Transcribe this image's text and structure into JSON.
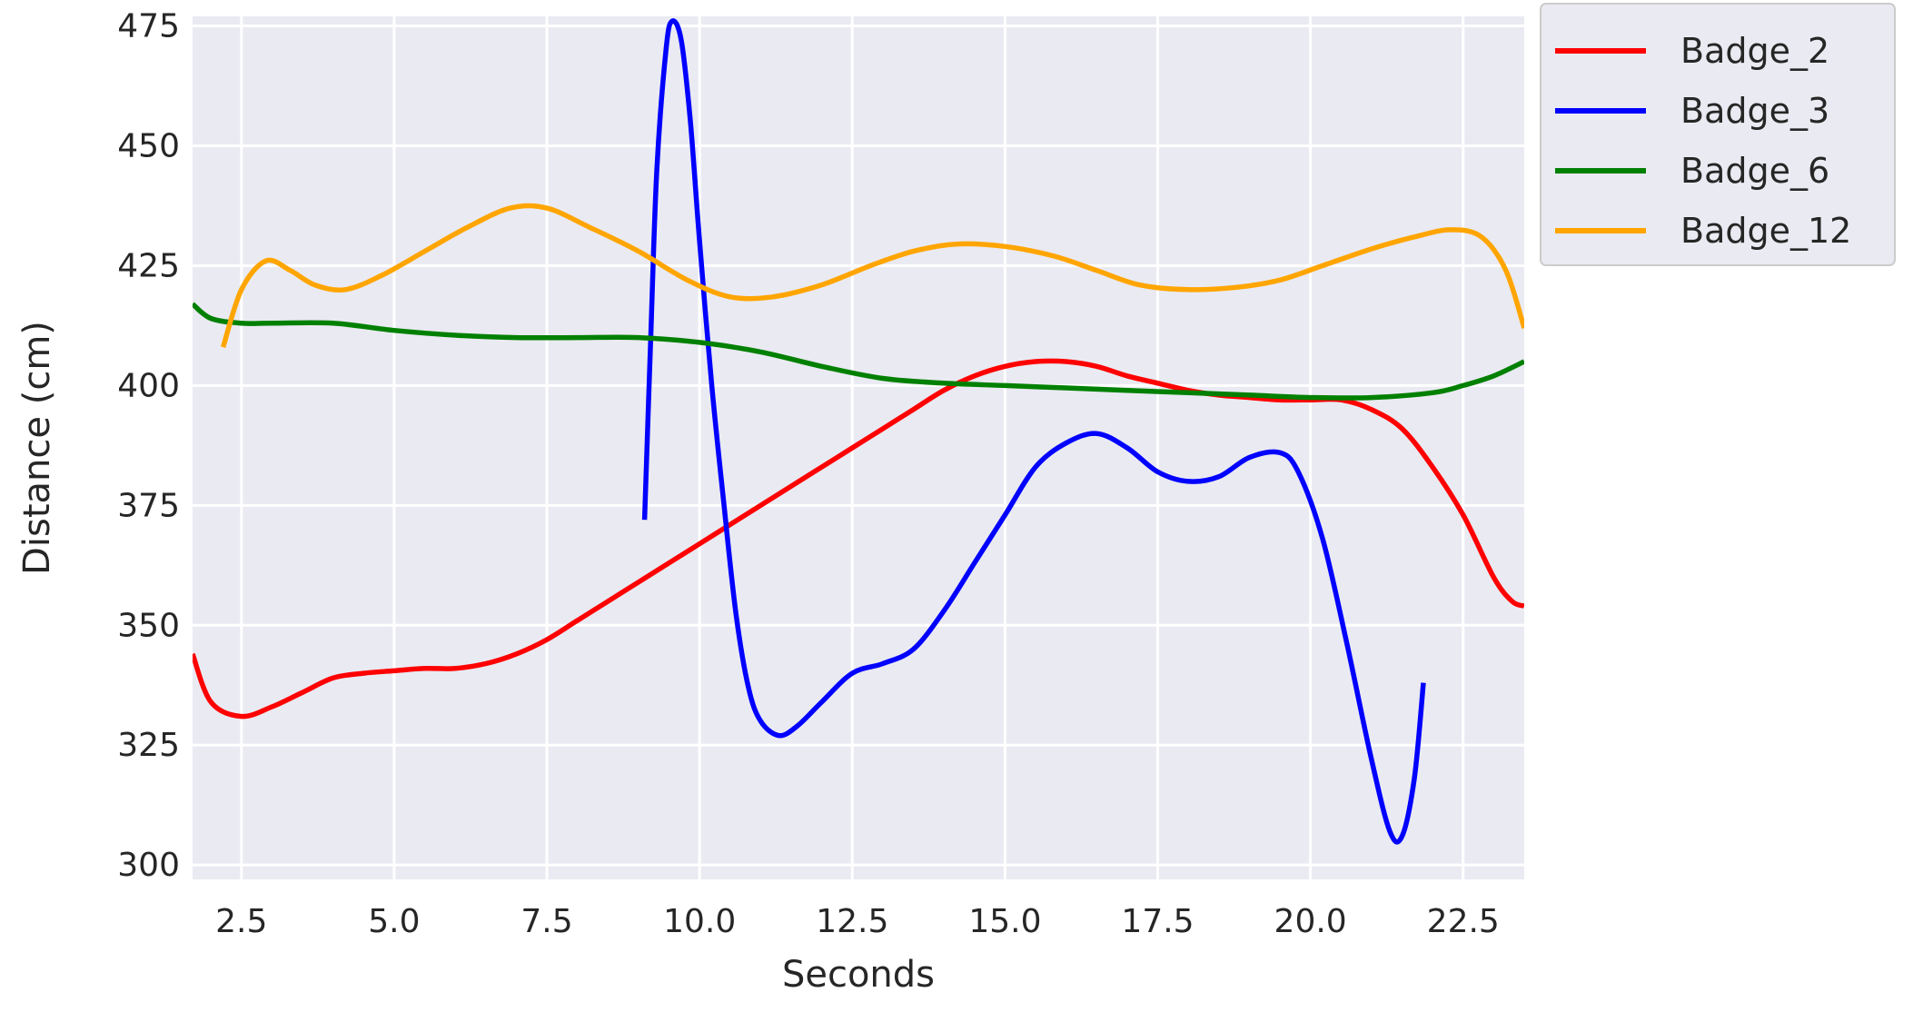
{
  "chart_data": {
    "type": "line",
    "xlabel": "Seconds",
    "ylabel": "Distance (cm)",
    "xlim": [
      1.7,
      23.5
    ],
    "ylim": [
      297,
      477
    ],
    "xticks": [
      2.5,
      5.0,
      7.5,
      10.0,
      12.5,
      15.0,
      17.5,
      20.0,
      22.5
    ],
    "xtick_labels": [
      "2.5",
      "5.0",
      "7.5",
      "10.0",
      "12.5",
      "15.0",
      "17.5",
      "20.0",
      "22.5"
    ],
    "yticks": [
      300,
      325,
      350,
      375,
      400,
      425,
      450,
      475
    ],
    "ytick_labels": [
      "300",
      "325",
      "350",
      "375",
      "400",
      "425",
      "450",
      "475"
    ],
    "grid": true,
    "legend_position": "outside-upper-right",
    "series": [
      {
        "name": "Badge_2",
        "color": "#ff0000",
        "points": [
          [
            1.7,
            344
          ],
          [
            2.0,
            334
          ],
          [
            2.5,
            331
          ],
          [
            3.0,
            333
          ],
          [
            3.5,
            336
          ],
          [
            4.0,
            339
          ],
          [
            4.5,
            340
          ],
          [
            5.0,
            340.5
          ],
          [
            5.5,
            341
          ],
          [
            6.0,
            341
          ],
          [
            6.5,
            342
          ],
          [
            7.0,
            344
          ],
          [
            7.5,
            347
          ],
          [
            8.0,
            351
          ],
          [
            8.5,
            355
          ],
          [
            9.0,
            359
          ],
          [
            9.5,
            363
          ],
          [
            10.0,
            367
          ],
          [
            10.5,
            371
          ],
          [
            11.0,
            375
          ],
          [
            11.5,
            379
          ],
          [
            12.0,
            383
          ],
          [
            12.5,
            387
          ],
          [
            13.0,
            391
          ],
          [
            13.5,
            395
          ],
          [
            14.0,
            399
          ],
          [
            14.5,
            402
          ],
          [
            15.0,
            404
          ],
          [
            15.5,
            405
          ],
          [
            16.0,
            405
          ],
          [
            16.5,
            404
          ],
          [
            17.0,
            402
          ],
          [
            17.5,
            400.5
          ],
          [
            18.0,
            399
          ],
          [
            18.5,
            398
          ],
          [
            19.0,
            397.5
          ],
          [
            19.5,
            397
          ],
          [
            20.0,
            397
          ],
          [
            20.5,
            397
          ],
          [
            21.0,
            395
          ],
          [
            21.5,
            391
          ],
          [
            22.0,
            383
          ],
          [
            22.5,
            373
          ],
          [
            23.0,
            360
          ],
          [
            23.3,
            355
          ],
          [
            23.5,
            354
          ]
        ]
      },
      {
        "name": "Badge_3",
        "color": "#0000ff",
        "points": [
          [
            9.1,
            372
          ],
          [
            9.2,
            410
          ],
          [
            9.3,
            445
          ],
          [
            9.45,
            470
          ],
          [
            9.55,
            476
          ],
          [
            9.7,
            472
          ],
          [
            9.85,
            455
          ],
          [
            10.0,
            430
          ],
          [
            10.2,
            400
          ],
          [
            10.4,
            375
          ],
          [
            10.6,
            352
          ],
          [
            10.8,
            337
          ],
          [
            11.0,
            330
          ],
          [
            11.3,
            327
          ],
          [
            11.6,
            329
          ],
          [
            12.0,
            334
          ],
          [
            12.5,
            340
          ],
          [
            13.0,
            342
          ],
          [
            13.5,
            345
          ],
          [
            14.0,
            353
          ],
          [
            14.5,
            363
          ],
          [
            15.0,
            373
          ],
          [
            15.5,
            383
          ],
          [
            16.0,
            388
          ],
          [
            16.5,
            390
          ],
          [
            17.0,
            387
          ],
          [
            17.5,
            382
          ],
          [
            18.0,
            380
          ],
          [
            18.5,
            381
          ],
          [
            19.0,
            385
          ],
          [
            19.5,
            386
          ],
          [
            19.8,
            382
          ],
          [
            20.2,
            368
          ],
          [
            20.6,
            346
          ],
          [
            21.0,
            322
          ],
          [
            21.3,
            307
          ],
          [
            21.5,
            306
          ],
          [
            21.7,
            318
          ],
          [
            21.85,
            338
          ]
        ]
      },
      {
        "name": "Badge_6",
        "color": "#008000",
        "points": [
          [
            1.7,
            417
          ],
          [
            2.0,
            414
          ],
          [
            2.5,
            413
          ],
          [
            3.0,
            413
          ],
          [
            4.0,
            413
          ],
          [
            5.0,
            411.5
          ],
          [
            6.0,
            410.5
          ],
          [
            7.0,
            410
          ],
          [
            8.0,
            410
          ],
          [
            9.0,
            410
          ],
          [
            10.0,
            409
          ],
          [
            11.0,
            407
          ],
          [
            12.0,
            404
          ],
          [
            13.0,
            401.5
          ],
          [
            14.0,
            400.5
          ],
          [
            15.0,
            400
          ],
          [
            16.0,
            399.5
          ],
          [
            17.0,
            399
          ],
          [
            18.0,
            398.5
          ],
          [
            19.0,
            398
          ],
          [
            20.0,
            397.5
          ],
          [
            21.0,
            397.5
          ],
          [
            22.0,
            398.5
          ],
          [
            22.5,
            400
          ],
          [
            23.0,
            402
          ],
          [
            23.5,
            405
          ]
        ]
      },
      {
        "name": "Badge_12",
        "color": "#ffa500",
        "points": [
          [
            2.2,
            408
          ],
          [
            2.5,
            420
          ],
          [
            2.9,
            426
          ],
          [
            3.3,
            424
          ],
          [
            3.7,
            421
          ],
          [
            4.2,
            420
          ],
          [
            4.8,
            423
          ],
          [
            5.5,
            428
          ],
          [
            6.2,
            433
          ],
          [
            6.9,
            437
          ],
          [
            7.5,
            437
          ],
          [
            8.2,
            433
          ],
          [
            9.0,
            428
          ],
          [
            9.8,
            422
          ],
          [
            10.5,
            418.5
          ],
          [
            11.2,
            418.5
          ],
          [
            12.0,
            421
          ],
          [
            12.8,
            425
          ],
          [
            13.5,
            428
          ],
          [
            14.2,
            429.5
          ],
          [
            15.0,
            429
          ],
          [
            15.8,
            427
          ],
          [
            16.5,
            424
          ],
          [
            17.2,
            421
          ],
          [
            18.0,
            420
          ],
          [
            18.8,
            420.5
          ],
          [
            19.5,
            422
          ],
          [
            20.2,
            425
          ],
          [
            21.0,
            428.5
          ],
          [
            21.7,
            431
          ],
          [
            22.3,
            432.5
          ],
          [
            22.8,
            431
          ],
          [
            23.2,
            424
          ],
          [
            23.5,
            412
          ]
        ]
      }
    ]
  }
}
